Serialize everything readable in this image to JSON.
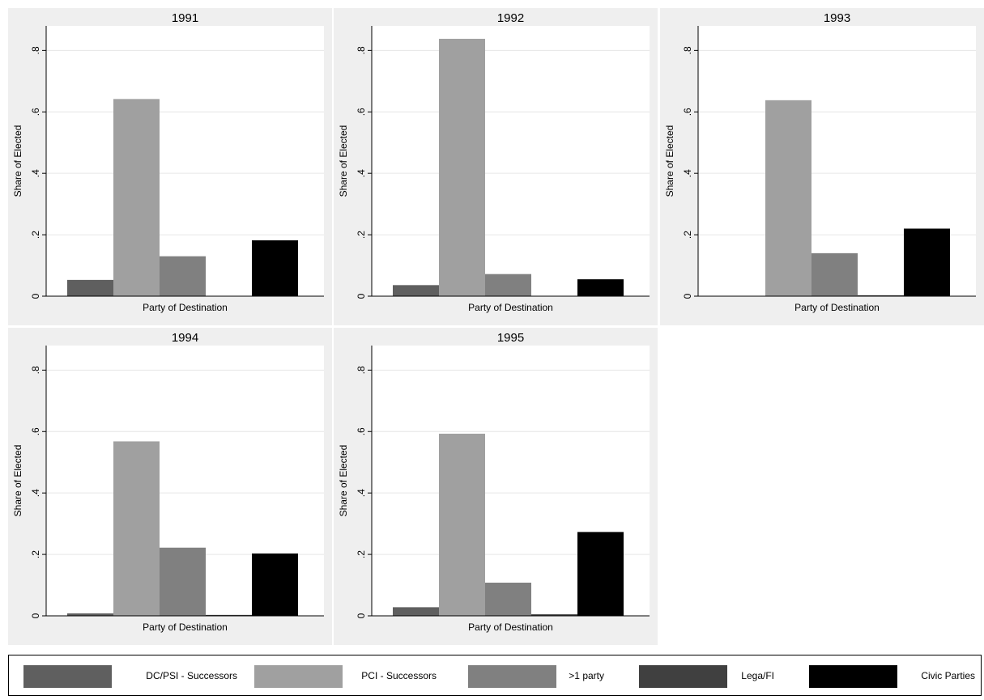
{
  "chart_data": [
    {
      "type": "bar",
      "title": "1991",
      "xlabel": "Party of Destination",
      "ylabel": "Share of Elected",
      "ylim": [
        0,
        0.88
      ],
      "yticks": [
        0,
        0.2,
        0.4,
        0.6,
        0.8
      ],
      "ytick_labels": [
        "0",
        ".2",
        ".4",
        ".6",
        ".8"
      ],
      "categories": [
        "DC/PSI - Successors",
        "PCI - Successors",
        ">1 party",
        "Lega/FI",
        "Civic Parties"
      ],
      "values": [
        0.053,
        0.642,
        0.13,
        0.0,
        0.182
      ],
      "grid": true
    },
    {
      "type": "bar",
      "title": "1992",
      "xlabel": "Party of Destination",
      "ylabel": "Share of Elected",
      "ylim": [
        0,
        0.88
      ],
      "yticks": [
        0,
        0.2,
        0.4,
        0.6,
        0.8
      ],
      "ytick_labels": [
        "0",
        ".2",
        ".4",
        ".6",
        ".8"
      ],
      "categories": [
        "DC/PSI - Successors",
        "PCI - Successors",
        ">1 party",
        "Lega/FI",
        "Civic Parties"
      ],
      "values": [
        0.036,
        0.838,
        0.072,
        0.0,
        0.055
      ],
      "grid": true
    },
    {
      "type": "bar",
      "title": "1993",
      "xlabel": "Party of Destination",
      "ylabel": "Share of Elected",
      "ylim": [
        0,
        0.88
      ],
      "yticks": [
        0,
        0.2,
        0.4,
        0.6,
        0.8
      ],
      "ytick_labels": [
        "0",
        ".2",
        ".4",
        ".6",
        ".8"
      ],
      "categories": [
        "DC/PSI - Successors",
        "PCI - Successors",
        ">1 party",
        "Lega/FI",
        "Civic Parties"
      ],
      "values": [
        0.0,
        0.638,
        0.14,
        0.003,
        0.22
      ],
      "grid": true
    },
    {
      "type": "bar",
      "title": "1994",
      "xlabel": "Party of Destination",
      "ylabel": "Share of Elected",
      "ylim": [
        0,
        0.88
      ],
      "yticks": [
        0,
        0.2,
        0.4,
        0.6,
        0.8
      ],
      "ytick_labels": [
        "0",
        ".2",
        ".4",
        ".6",
        ".8"
      ],
      "categories": [
        "DC/PSI - Successors",
        "PCI - Successors",
        ">1 party",
        "Lega/FI",
        "Civic Parties"
      ],
      "values": [
        0.008,
        0.568,
        0.222,
        0.003,
        0.203
      ],
      "grid": true
    },
    {
      "type": "bar",
      "title": "1995",
      "xlabel": "Party of Destination",
      "ylabel": "Share of Elected",
      "ylim": [
        0,
        0.88
      ],
      "yticks": [
        0,
        0.2,
        0.4,
        0.6,
        0.8
      ],
      "ytick_labels": [
        "0",
        ".2",
        ".4",
        ".6",
        ".8"
      ],
      "categories": [
        "DC/PSI - Successors",
        "PCI - Successors",
        ">1 party",
        "Lega/FI",
        "Civic Parties"
      ],
      "values": [
        0.028,
        0.593,
        0.108,
        0.005,
        0.273
      ],
      "grid": true
    }
  ],
  "legend": {
    "placement": "bottom",
    "items": [
      {
        "label": "DC/PSI - Successors",
        "color": "#5f5f5f"
      },
      {
        "label": "PCI - Successors",
        "color": "#a0a0a0"
      },
      {
        "label": ">1 party",
        "color": "#808080"
      },
      {
        "label": "Lega/FI",
        "color": "#404040"
      },
      {
        "label": "Civic Parties",
        "color": "#000000"
      }
    ]
  },
  "colors": {
    "panel_background": "#efefef",
    "plot_background": "#ffffff",
    "gridline": "#e6e6e6",
    "axis": "#000000"
  }
}
